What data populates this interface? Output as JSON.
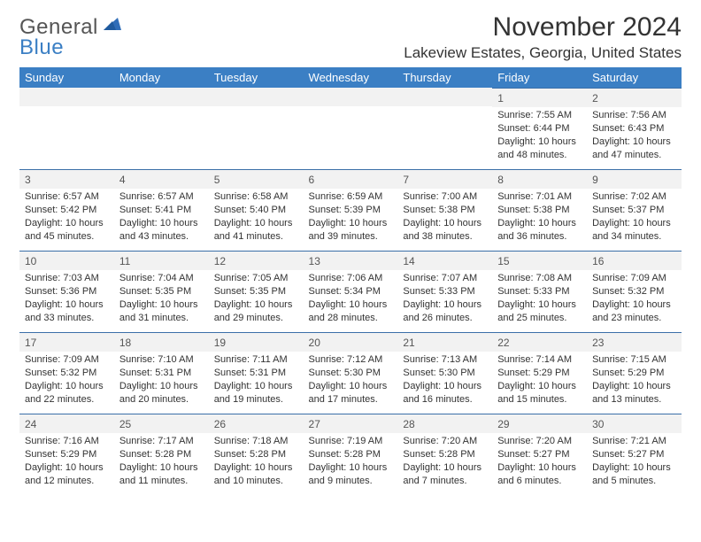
{
  "logo": {
    "word1": "General",
    "word2": "Blue"
  },
  "title": "November 2024",
  "location": "Lakeview Estates, Georgia, United States",
  "colors": {
    "header_bg": "#3b7fc4",
    "header_text": "#ffffff",
    "daynum_bg": "#f2f2f2",
    "row_border": "#3b6fa8",
    "body_text": "#333333",
    "logo_gray": "#555555",
    "logo_blue": "#3b7fc4",
    "page_bg": "#ffffff"
  },
  "typography": {
    "title_fontsize": 30,
    "location_fontsize": 17,
    "header_fontsize": 13,
    "daynum_fontsize": 12,
    "cell_fontsize": 11
  },
  "day_headers": [
    "Sunday",
    "Monday",
    "Tuesday",
    "Wednesday",
    "Thursday",
    "Friday",
    "Saturday"
  ],
  "weeks": [
    [
      null,
      null,
      null,
      null,
      null,
      {
        "n": "1",
        "sr": "7:55 AM",
        "ss": "6:44 PM",
        "dl": "10 hours and 48 minutes."
      },
      {
        "n": "2",
        "sr": "7:56 AM",
        "ss": "6:43 PM",
        "dl": "10 hours and 47 minutes."
      }
    ],
    [
      {
        "n": "3",
        "sr": "6:57 AM",
        "ss": "5:42 PM",
        "dl": "10 hours and 45 minutes."
      },
      {
        "n": "4",
        "sr": "6:57 AM",
        "ss": "5:41 PM",
        "dl": "10 hours and 43 minutes."
      },
      {
        "n": "5",
        "sr": "6:58 AM",
        "ss": "5:40 PM",
        "dl": "10 hours and 41 minutes."
      },
      {
        "n": "6",
        "sr": "6:59 AM",
        "ss": "5:39 PM",
        "dl": "10 hours and 39 minutes."
      },
      {
        "n": "7",
        "sr": "7:00 AM",
        "ss": "5:38 PM",
        "dl": "10 hours and 38 minutes."
      },
      {
        "n": "8",
        "sr": "7:01 AM",
        "ss": "5:38 PM",
        "dl": "10 hours and 36 minutes."
      },
      {
        "n": "9",
        "sr": "7:02 AM",
        "ss": "5:37 PM",
        "dl": "10 hours and 34 minutes."
      }
    ],
    [
      {
        "n": "10",
        "sr": "7:03 AM",
        "ss": "5:36 PM",
        "dl": "10 hours and 33 minutes."
      },
      {
        "n": "11",
        "sr": "7:04 AM",
        "ss": "5:35 PM",
        "dl": "10 hours and 31 minutes."
      },
      {
        "n": "12",
        "sr": "7:05 AM",
        "ss": "5:35 PM",
        "dl": "10 hours and 29 minutes."
      },
      {
        "n": "13",
        "sr": "7:06 AM",
        "ss": "5:34 PM",
        "dl": "10 hours and 28 minutes."
      },
      {
        "n": "14",
        "sr": "7:07 AM",
        "ss": "5:33 PM",
        "dl": "10 hours and 26 minutes."
      },
      {
        "n": "15",
        "sr": "7:08 AM",
        "ss": "5:33 PM",
        "dl": "10 hours and 25 minutes."
      },
      {
        "n": "16",
        "sr": "7:09 AM",
        "ss": "5:32 PM",
        "dl": "10 hours and 23 minutes."
      }
    ],
    [
      {
        "n": "17",
        "sr": "7:09 AM",
        "ss": "5:32 PM",
        "dl": "10 hours and 22 minutes."
      },
      {
        "n": "18",
        "sr": "7:10 AM",
        "ss": "5:31 PM",
        "dl": "10 hours and 20 minutes."
      },
      {
        "n": "19",
        "sr": "7:11 AM",
        "ss": "5:31 PM",
        "dl": "10 hours and 19 minutes."
      },
      {
        "n": "20",
        "sr": "7:12 AM",
        "ss": "5:30 PM",
        "dl": "10 hours and 17 minutes."
      },
      {
        "n": "21",
        "sr": "7:13 AM",
        "ss": "5:30 PM",
        "dl": "10 hours and 16 minutes."
      },
      {
        "n": "22",
        "sr": "7:14 AM",
        "ss": "5:29 PM",
        "dl": "10 hours and 15 minutes."
      },
      {
        "n": "23",
        "sr": "7:15 AM",
        "ss": "5:29 PM",
        "dl": "10 hours and 13 minutes."
      }
    ],
    [
      {
        "n": "24",
        "sr": "7:16 AM",
        "ss": "5:29 PM",
        "dl": "10 hours and 12 minutes."
      },
      {
        "n": "25",
        "sr": "7:17 AM",
        "ss": "5:28 PM",
        "dl": "10 hours and 11 minutes."
      },
      {
        "n": "26",
        "sr": "7:18 AM",
        "ss": "5:28 PM",
        "dl": "10 hours and 10 minutes."
      },
      {
        "n": "27",
        "sr": "7:19 AM",
        "ss": "5:28 PM",
        "dl": "10 hours and 9 minutes."
      },
      {
        "n": "28",
        "sr": "7:20 AM",
        "ss": "5:28 PM",
        "dl": "10 hours and 7 minutes."
      },
      {
        "n": "29",
        "sr": "7:20 AM",
        "ss": "5:27 PM",
        "dl": "10 hours and 6 minutes."
      },
      {
        "n": "30",
        "sr": "7:21 AM",
        "ss": "5:27 PM",
        "dl": "10 hours and 5 minutes."
      }
    ]
  ],
  "labels": {
    "sunrise": "Sunrise:",
    "sunset": "Sunset:",
    "daylight": "Daylight:"
  }
}
